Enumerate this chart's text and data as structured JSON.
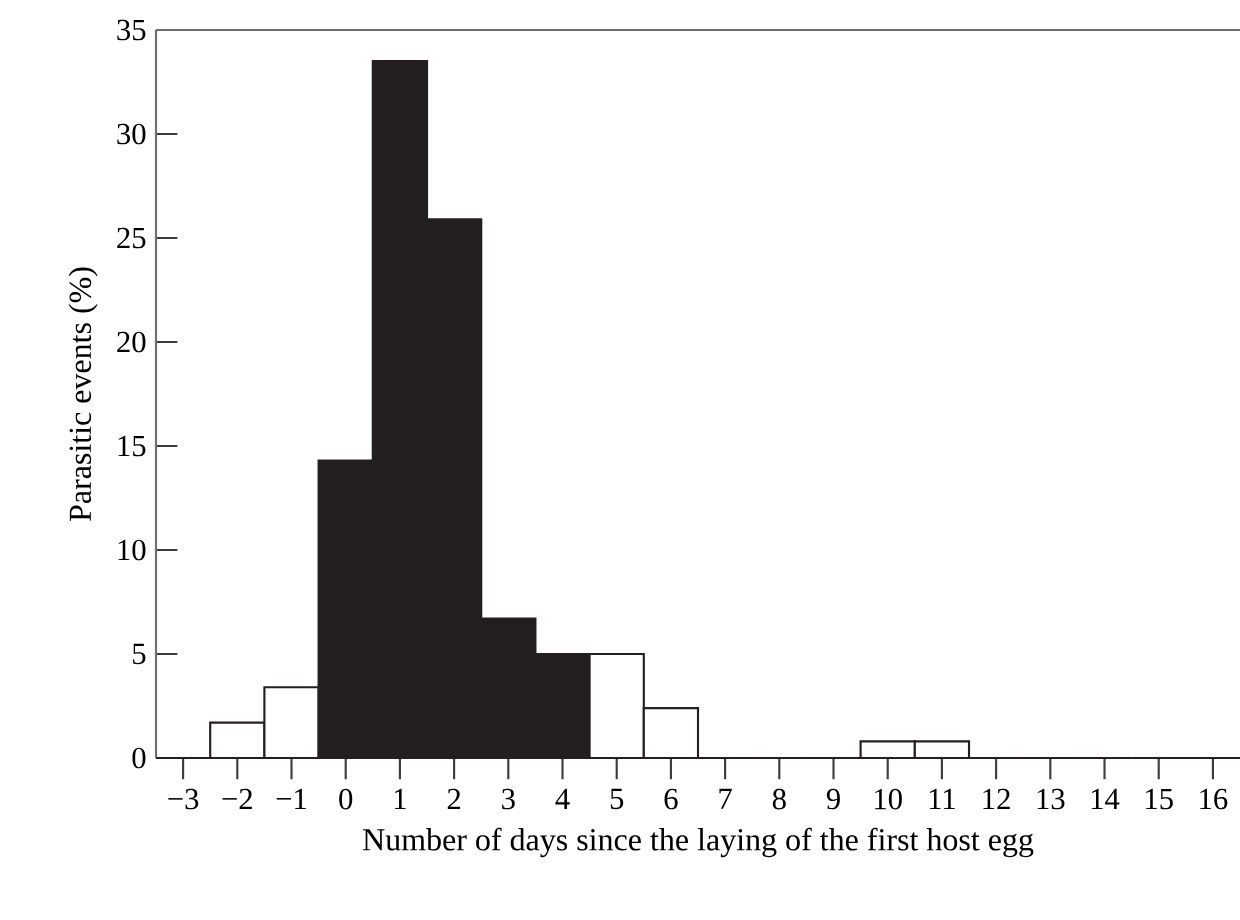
{
  "chart_data": {
    "type": "histogram",
    "xlabel": "Number of days since the laying of the first host egg",
    "ylabel": "Parasitic events (%)",
    "bins": [
      -3.5,
      -2.5,
      -1.5,
      -0.5,
      0.5,
      1.5,
      2.5,
      3.5,
      4.5,
      5.5,
      6.5,
      7.5,
      8.5,
      9.5,
      10.5,
      11.5,
      12.5,
      13.5,
      14.5,
      15.5,
      16.5
    ],
    "values": [
      0,
      1.7,
      3.4,
      14.3,
      33.5,
      25.9,
      6.7,
      5.0,
      5.0,
      2.4,
      0,
      0,
      0,
      0.8,
      0.8,
      0,
      0,
      0,
      0,
      0
    ],
    "colors": [
      "#ffffff",
      "#ffffff",
      "#ffffff",
      "#231f20",
      "#231f20",
      "#231f20",
      "#231f20",
      "#231f20",
      "#ffffff",
      "#ffffff",
      "#ffffff",
      "#ffffff",
      "#ffffff",
      "#ffffff",
      "#ffffff",
      "#ffffff",
      "#ffffff",
      "#ffffff",
      "#ffffff",
      "#ffffff"
    ],
    "xlim": [
      -3.5,
      16.5
    ],
    "xticks": [
      {
        "value": -3,
        "label": "−3"
      },
      {
        "value": -2,
        "label": "−2"
      },
      {
        "value": -1,
        "label": "−1"
      },
      0,
      1,
      2,
      3,
      4,
      5,
      6,
      7,
      8,
      9,
      10,
      11,
      12,
      13,
      14,
      15,
      16
    ],
    "ylim": [
      0,
      35
    ],
    "yticks": [
      0,
      5,
      10,
      15,
      20,
      25,
      30,
      35
    ],
    "grid": false
  }
}
